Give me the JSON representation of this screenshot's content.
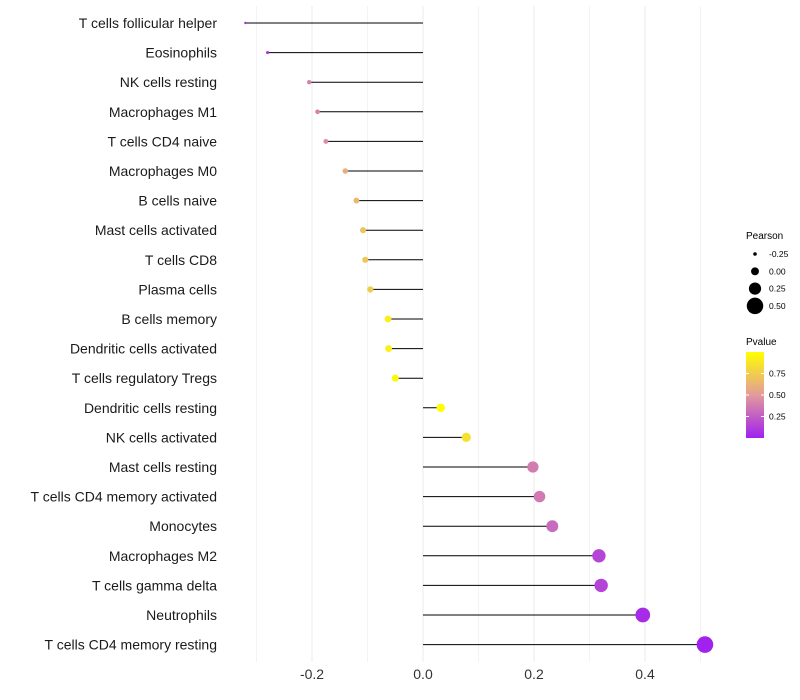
{
  "chart_data": {
    "type": "lollipop",
    "title": "",
    "xlabel": "",
    "ylabel": "",
    "xlim": [
      -0.33,
      0.52
    ],
    "x_ticks": [
      -0.2,
      0.0,
      0.2,
      0.4
    ],
    "x_tick_labels": [
      "-0.2",
      "0.0",
      "0.2",
      "0.4"
    ],
    "grid": true,
    "legend_position": "right",
    "categories": [
      "T cells follicular helper",
      "Eosinophils",
      "NK cells resting",
      "Macrophages M1",
      "T cells CD4 naive",
      "Macrophages M0",
      "B cells naive",
      "Mast cells activated",
      "T cells CD8",
      "Plasma cells",
      "B cells memory",
      "Dendritic cells activated",
      "T cells regulatory  Tregs ",
      "Dendritic cells resting",
      "NK cells activated",
      "Mast cells resting",
      "T cells CD4 memory activated",
      "Monocytes",
      "Macrophages M2",
      "T cells gamma delta",
      "Neutrophils",
      "T cells CD4 memory resting"
    ],
    "pearson": [
      -0.32,
      -0.28,
      -0.205,
      -0.19,
      -0.175,
      -0.14,
      -0.12,
      -0.108,
      -0.104,
      -0.095,
      -0.063,
      -0.062,
      -0.05,
      0.032,
      0.078,
      0.198,
      0.21,
      0.233,
      0.317,
      0.321,
      0.396,
      0.508
    ],
    "pvalue": [
      0.03,
      0.1,
      0.4,
      0.4,
      0.45,
      0.6,
      0.65,
      0.7,
      0.72,
      0.75,
      0.92,
      0.93,
      0.96,
      0.99,
      0.85,
      0.38,
      0.36,
      0.3,
      0.15,
      0.15,
      0.05,
      0.01
    ],
    "size_legend": {
      "title": "Pearson",
      "values": [
        -0.25,
        0.0,
        0.25,
        0.5
      ],
      "labels": [
        "-0.25",
        "0.00",
        "0.25",
        "0.50"
      ]
    },
    "color_legend": {
      "title": "Pvalue",
      "ticks": [
        0.25,
        0.5,
        0.75
      ],
      "labels": [
        "0.25",
        "0.50",
        "0.75"
      ],
      "range": [
        0.0,
        1.0
      ],
      "low_color": "#A020F0",
      "mid_color": "#E29B9B",
      "high_color": "#FFFF00"
    },
    "colors": {
      "stem": "#000000",
      "grid": "#ebebeb"
    }
  }
}
